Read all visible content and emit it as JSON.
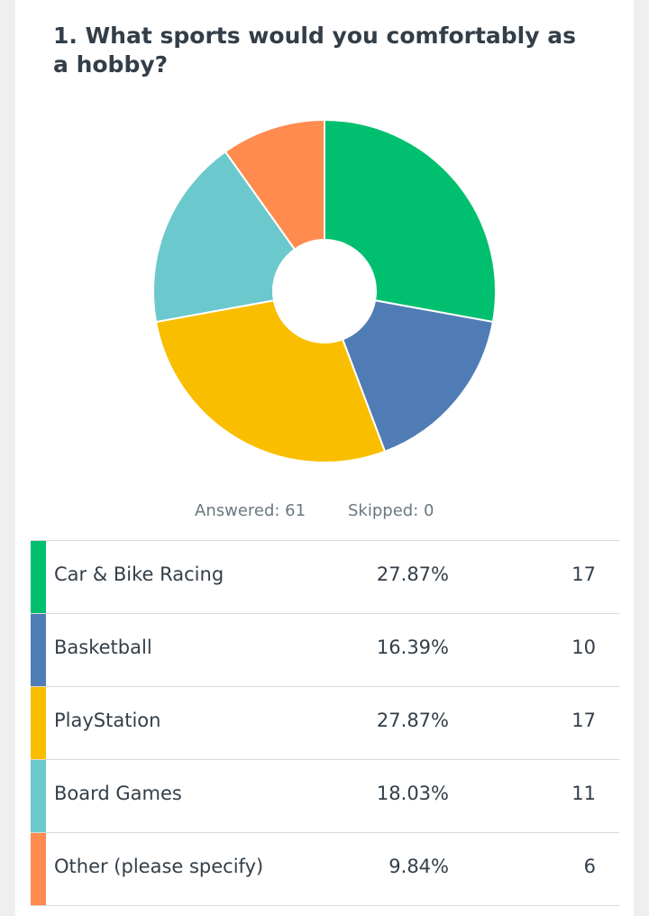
{
  "question": {
    "title": "1. What sports would you comfortably as a hobby?"
  },
  "stats": {
    "answered": "Answered: 61",
    "skipped": "Skipped: 0"
  },
  "chart_data": {
    "type": "pie",
    "donut": true,
    "title": "1. What sports would you comfortably as a hobby?",
    "categories": [
      "Car & Bike Racing",
      "Basketball",
      "PlayStation",
      "Board Games",
      "Other (please specify)"
    ],
    "values": [
      17,
      10,
      17,
      11,
      6
    ],
    "percentages": [
      "27.87%",
      "16.39%",
      "27.87%",
      "18.03%",
      "9.84%"
    ],
    "colors": [
      "#00bf6f",
      "#507cb6",
      "#f9be00",
      "#6bc8cd",
      "#ff8b4f"
    ],
    "total": 61
  },
  "rows": [
    {
      "label": "Car & Bike Racing",
      "pct": "27.87%",
      "count": "17",
      "color": "#00bf6f"
    },
    {
      "label": "Basketball",
      "pct": "16.39%",
      "count": "10",
      "color": "#507cb6"
    },
    {
      "label": "PlayStation",
      "pct": "27.87%",
      "count": "17",
      "color": "#f9be00"
    },
    {
      "label": "Board Games",
      "pct": "18.03%",
      "count": "11",
      "color": "#6bc8cd"
    },
    {
      "label": "Other (please specify)",
      "pct": "9.84%",
      "count": "6",
      "color": "#ff8b4f"
    }
  ]
}
